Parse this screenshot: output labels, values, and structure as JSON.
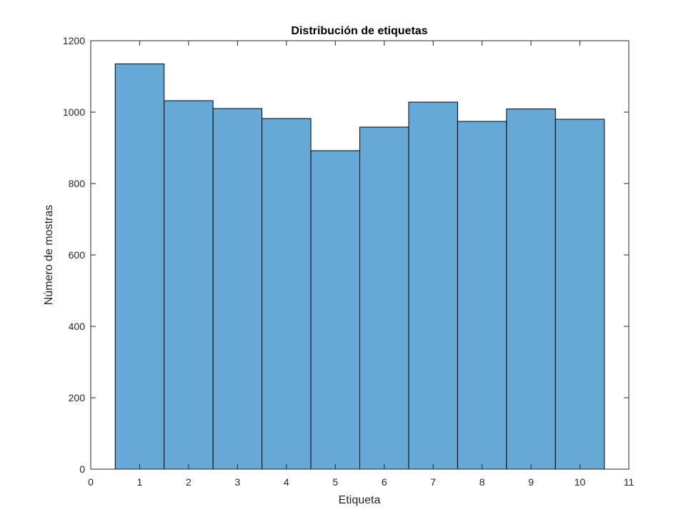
{
  "chart_data": {
    "type": "bar",
    "title": "Distribución de etiquetas",
    "xlabel": "Etiqueta",
    "ylabel": "Número de mostras",
    "categories": [
      1,
      2,
      3,
      4,
      5,
      6,
      7,
      8,
      9,
      10
    ],
    "values": [
      1135,
      1032,
      1010,
      982,
      892,
      958,
      1028,
      974,
      1009,
      980
    ],
    "bin_width": 1,
    "xlim": [
      0,
      11
    ],
    "ylim": [
      0,
      1200
    ],
    "xticks": [
      0,
      1,
      2,
      3,
      4,
      5,
      6,
      7,
      8,
      9,
      10,
      11
    ],
    "yticks": [
      0,
      200,
      400,
      600,
      800,
      1000,
      1200
    ],
    "grid": false,
    "colors": {
      "bar_fill": "#66a9d6",
      "bar_edge": "#000000",
      "axes": "#262626",
      "background": "#ffffff"
    }
  }
}
